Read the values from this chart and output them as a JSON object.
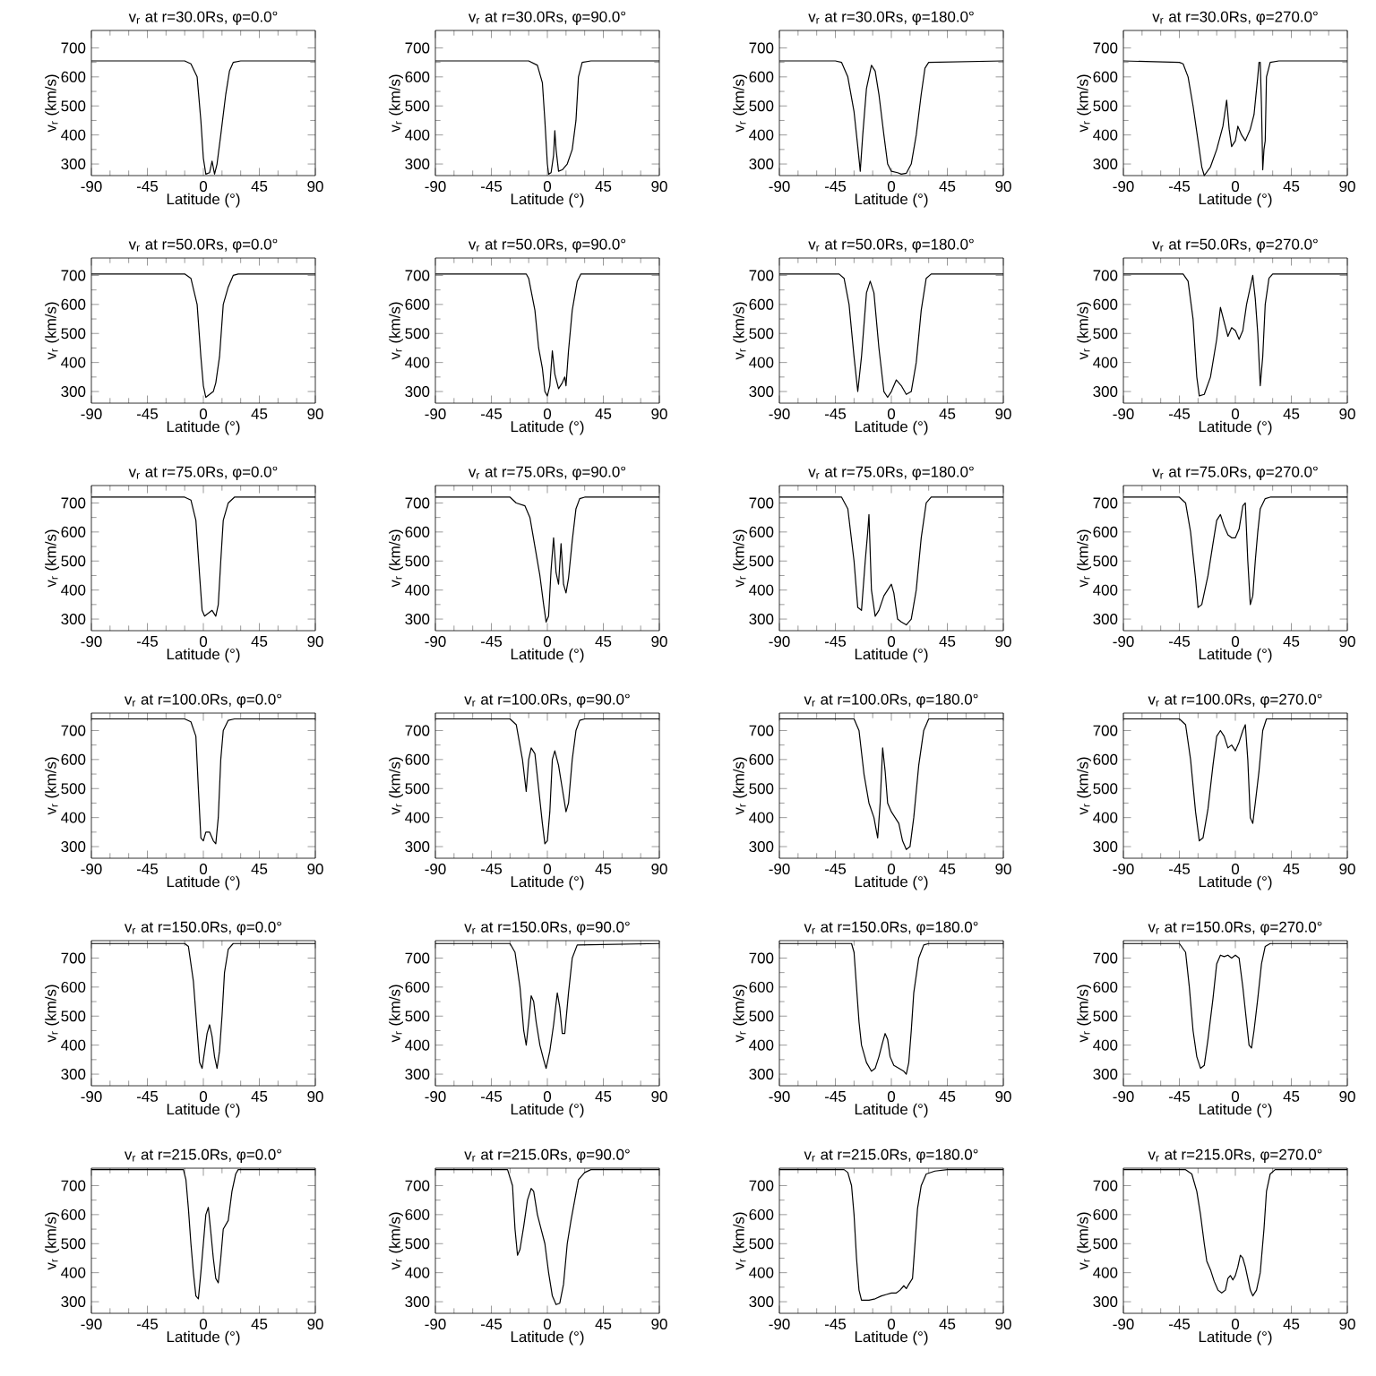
{
  "chart_data": [
    {
      "type": "line",
      "title": "v$_{r}$ at r=30.0Rs, φ=0.0°",
      "xlabel": "Latitude (°)",
      "ylabel": "v$_{r}$ (km/s)",
      "color": "#000000",
      "xlim": [
        -90,
        90
      ],
      "ylim": [
        260,
        760
      ],
      "xticks": [
        -90,
        -45,
        0,
        45,
        90
      ],
      "yticks": [
        300,
        400,
        500,
        600,
        700
      ],
      "x": [
        -90,
        -15,
        -10,
        -5,
        -2,
        0,
        2,
        5,
        7,
        9,
        11,
        14,
        18,
        21,
        24,
        30,
        90
      ],
      "values": [
        655,
        655,
        645,
        600,
        450,
        320,
        265,
        270,
        310,
        265,
        300,
        400,
        540,
        620,
        650,
        655,
        655
      ]
    },
    {
      "type": "line",
      "title": "v$_{r}$ at r=30.0Rs, φ=90.0°",
      "xlabel": "Latitude (°)",
      "ylabel": "v$_{r}$ (km/s)",
      "color": "#000000",
      "xlim": [
        -90,
        90
      ],
      "ylim": [
        260,
        760
      ],
      "xticks": [
        -90,
        -45,
        0,
        45,
        90
      ],
      "yticks": [
        300,
        400,
        500,
        600,
        700
      ],
      "x": [
        -90,
        -15,
        -8,
        -4,
        -2,
        0,
        1,
        3,
        5,
        6,
        7,
        9,
        12,
        16,
        20,
        23,
        25,
        28,
        35,
        90
      ],
      "values": [
        655,
        655,
        640,
        580,
        450,
        300,
        265,
        270,
        330,
        415,
        350,
        275,
        280,
        300,
        350,
        450,
        600,
        650,
        655,
        655
      ]
    },
    {
      "type": "line",
      "title": "v$_{r}$ at r=30.0Rs, φ=180.0°",
      "xlabel": "Latitude (°)",
      "ylabel": "v$_{r}$ (km/s)",
      "color": "#000000",
      "xlim": [
        -90,
        90
      ],
      "ylim": [
        260,
        760
      ],
      "xticks": [
        -90,
        -45,
        0,
        45,
        90
      ],
      "yticks": [
        300,
        400,
        500,
        600,
        700
      ],
      "x": [
        -90,
        -45,
        -40,
        -35,
        -30,
        -27,
        -25,
        -23,
        -20,
        -16,
        -13,
        -10,
        -6,
        -3,
        0,
        5,
        8,
        12,
        16,
        20,
        24,
        27,
        30,
        90
      ],
      "values": [
        655,
        655,
        650,
        600,
        480,
        360,
        275,
        400,
        560,
        640,
        620,
        540,
        400,
        300,
        275,
        270,
        265,
        268,
        300,
        400,
        540,
        630,
        650,
        655
      ]
    },
    {
      "type": "line",
      "title": "v$_{r}$ at r=30.0Rs, φ=270.0°",
      "xlabel": "Latitude (°)",
      "ylabel": "v$_{r}$ (km/s)",
      "color": "#000000",
      "xlim": [
        -90,
        90
      ],
      "ylim": [
        260,
        760
      ],
      "xticks": [
        -90,
        -45,
        0,
        45,
        90
      ],
      "yticks": [
        300,
        400,
        500,
        600,
        700
      ],
      "x": [
        -90,
        -45,
        -42,
        -38,
        -34,
        -30,
        -27,
        -25,
        -20,
        -15,
        -10,
        -7,
        -5,
        -3,
        0,
        2,
        5,
        8,
        12,
        15,
        18,
        19,
        20,
        21,
        22,
        23,
        24,
        25,
        28,
        35,
        90
      ],
      "values": [
        655,
        650,
        645,
        600,
        500,
        380,
        290,
        260,
        290,
        350,
        430,
        520,
        420,
        360,
        380,
        430,
        400,
        380,
        420,
        470,
        600,
        650,
        650,
        500,
        280,
        350,
        380,
        600,
        650,
        655,
        655
      ]
    },
    {
      "type": "line",
      "title": "v$_{r}$ at r=50.0Rs, φ=0.0°",
      "xlabel": "Latitude (°)",
      "ylabel": "v$_{r}$ (km/s)",
      "color": "#000000",
      "xlim": [
        -90,
        90
      ],
      "ylim": [
        260,
        760
      ],
      "xticks": [
        -90,
        -45,
        0,
        45,
        90
      ],
      "yticks": [
        300,
        400,
        500,
        600,
        700
      ],
      "x": [
        -90,
        -15,
        -10,
        -5,
        -2,
        0,
        2,
        5,
        8,
        10,
        13,
        16,
        20,
        24,
        28,
        90
      ],
      "values": [
        705,
        705,
        690,
        600,
        420,
        320,
        280,
        290,
        300,
        330,
        420,
        600,
        660,
        700,
        705,
        705
      ]
    },
    {
      "type": "line",
      "title": "v$_{r}$ at r=50.0Rs, φ=90.0°",
      "xlabel": "Latitude (°)",
      "ylabel": "v$_{r}$ (km/s)",
      "color": "#000000",
      "xlim": [
        -90,
        90
      ],
      "ylim": [
        260,
        760
      ],
      "xticks": [
        -90,
        -45,
        0,
        45,
        90
      ],
      "yticks": [
        300,
        400,
        500,
        600,
        700
      ],
      "x": [
        -90,
        -17,
        -15,
        -10,
        -7,
        -4,
        -2,
        0,
        2,
        4,
        6,
        9,
        12,
        14,
        15,
        17,
        20,
        24,
        27,
        90
      ],
      "values": [
        705,
        705,
        690,
        580,
        450,
        380,
        300,
        285,
        320,
        440,
        360,
        310,
        330,
        350,
        320,
        440,
        580,
        680,
        705,
        705
      ]
    },
    {
      "type": "line",
      "title": "v$_{r}$ at r=50.0Rs, φ=180.0°",
      "xlabel": "Latitude (°)",
      "ylabel": "v$_{r}$ (km/s)",
      "color": "#000000",
      "xlim": [
        -90,
        90
      ],
      "ylim": [
        260,
        760
      ],
      "xticks": [
        -90,
        -45,
        0,
        45,
        90
      ],
      "yticks": [
        300,
        400,
        500,
        600,
        700
      ],
      "x": [
        -90,
        -42,
        -38,
        -34,
        -30,
        -27,
        -24,
        -20,
        -17,
        -14,
        -10,
        -6,
        -3,
        0,
        4,
        8,
        12,
        16,
        20,
        24,
        28,
        32,
        90
      ],
      "values": [
        705,
        705,
        690,
        600,
        420,
        300,
        420,
        640,
        680,
        640,
        450,
        300,
        280,
        300,
        340,
        320,
        290,
        300,
        400,
        580,
        690,
        705,
        705
      ]
    },
    {
      "type": "line",
      "title": "v$_{r}$ at r=50.0Rs, φ=270.0°",
      "xlabel": "Latitude (°)",
      "ylabel": "v$_{r}$ (km/s)",
      "color": "#000000",
      "xlim": [
        -90,
        90
      ],
      "ylim": [
        260,
        760
      ],
      "xticks": [
        -90,
        -45,
        0,
        45,
        90
      ],
      "yticks": [
        300,
        400,
        500,
        600,
        700
      ],
      "x": [
        -90,
        -42,
        -38,
        -34,
        -31,
        -29,
        -25,
        -20,
        -15,
        -12,
        -9,
        -6,
        -3,
        0,
        3,
        6,
        9,
        12,
        14,
        16,
        18,
        20,
        22,
        24,
        27,
        30,
        90
      ],
      "values": [
        705,
        705,
        680,
        550,
        350,
        285,
        290,
        350,
        480,
        590,
        540,
        490,
        520,
        510,
        480,
        510,
        600,
        660,
        700,
        620,
        500,
        320,
        420,
        600,
        690,
        705,
        705
      ]
    },
    {
      "type": "line",
      "title": "v$_{r}$ at r=75.0Rs, φ=0.0°",
      "xlabel": "Latitude (°)",
      "ylabel": "v$_{r}$ (km/s)",
      "color": "#000000",
      "xlim": [
        -90,
        90
      ],
      "ylim": [
        260,
        760
      ],
      "xticks": [
        -90,
        -45,
        0,
        45,
        90
      ],
      "yticks": [
        300,
        400,
        500,
        600,
        700
      ],
      "x": [
        -90,
        -15,
        -10,
        -6,
        -3,
        -1,
        1,
        4,
        7,
        10,
        12,
        14,
        16,
        20,
        25,
        90
      ],
      "values": [
        720,
        720,
        710,
        640,
        450,
        330,
        310,
        320,
        330,
        310,
        350,
        500,
        640,
        700,
        720,
        720
      ]
    },
    {
      "type": "line",
      "title": "v$_{r}$ at r=75.0Rs, φ=90.0°",
      "xlabel": "Latitude (°)",
      "ylabel": "v$_{r}$ (km/s)",
      "color": "#000000",
      "xlim": [
        -90,
        90
      ],
      "ylim": [
        260,
        760
      ],
      "xticks": [
        -90,
        -45,
        0,
        45,
        90
      ],
      "yticks": [
        300,
        400,
        500,
        600,
        700
      ],
      "x": [
        -90,
        -30,
        -25,
        -18,
        -14,
        -10,
        -6,
        -3,
        -1,
        1,
        3,
        5,
        7,
        9,
        11,
        13,
        15,
        17,
        20,
        23,
        26,
        30,
        90
      ],
      "values": [
        720,
        720,
        700,
        690,
        650,
        550,
        450,
        350,
        290,
        310,
        470,
        580,
        460,
        420,
        560,
        420,
        390,
        440,
        570,
        680,
        715,
        720,
        720
      ]
    },
    {
      "type": "line",
      "title": "v$_{r}$ at r=75.0Rs, φ=180.0°",
      "xlabel": "Latitude (°)",
      "ylabel": "v$_{r}$ (km/s)",
      "color": "#000000",
      "xlim": [
        -90,
        90
      ],
      "ylim": [
        260,
        760
      ],
      "xticks": [
        -90,
        -45,
        0,
        45,
        90
      ],
      "yticks": [
        300,
        400,
        500,
        600,
        700
      ],
      "x": [
        -90,
        -40,
        -35,
        -30,
        -27,
        -24,
        -21,
        -19,
        -18,
        -16,
        -13,
        -10,
        -6,
        -3,
        0,
        2,
        5,
        8,
        12,
        16,
        20,
        24,
        28,
        32,
        90
      ],
      "values": [
        720,
        720,
        680,
        500,
        340,
        330,
        500,
        600,
        660,
        400,
        310,
        330,
        380,
        400,
        420,
        390,
        300,
        290,
        280,
        300,
        400,
        580,
        700,
        720,
        720
      ]
    },
    {
      "type": "line",
      "title": "v$_{r}$ at r=75.0Rs, φ=270.0°",
      "xlabel": "Latitude (°)",
      "ylabel": "v$_{r}$ (km/s)",
      "color": "#000000",
      "xlim": [
        -90,
        90
      ],
      "ylim": [
        260,
        760
      ],
      "xticks": [
        -90,
        -45,
        0,
        45,
        90
      ],
      "yticks": [
        300,
        400,
        500,
        600,
        700
      ],
      "x": [
        -90,
        -45,
        -40,
        -36,
        -32,
        -30,
        -27,
        -22,
        -18,
        -15,
        -12,
        -9,
        -6,
        -3,
        0,
        3,
        6,
        8,
        10,
        12,
        14,
        16,
        18,
        20,
        24,
        28,
        90
      ],
      "values": [
        720,
        720,
        700,
        600,
        440,
        340,
        350,
        450,
        560,
        640,
        660,
        620,
        590,
        580,
        580,
        610,
        690,
        700,
        500,
        350,
        380,
        500,
        600,
        680,
        715,
        720,
        720
      ]
    },
    {
      "type": "line",
      "title": "v$_{r}$ at r=100.0Rs, φ=0.0°",
      "xlabel": "Latitude (°)",
      "ylabel": "v$_{r}$ (km/s)",
      "color": "#000000",
      "xlim": [
        -90,
        90
      ],
      "ylim": [
        260,
        760
      ],
      "xticks": [
        -90,
        -45,
        0,
        45,
        90
      ],
      "yticks": [
        300,
        400,
        500,
        600,
        700
      ],
      "x": [
        -90,
        -15,
        -10,
        -6,
        -4,
        -2,
        0,
        2,
        5,
        8,
        10,
        12,
        14,
        16,
        20,
        25,
        90
      ],
      "values": [
        740,
        740,
        730,
        680,
        500,
        330,
        320,
        350,
        350,
        320,
        310,
        400,
        600,
        700,
        735,
        740,
        740
      ]
    },
    {
      "type": "line",
      "title": "v$_{r}$ at r=100.0Rs, φ=90.0°",
      "xlabel": "Latitude (°)",
      "ylabel": "v$_{r}$ (km/s)",
      "color": "#000000",
      "xlim": [
        -90,
        90
      ],
      "ylim": [
        260,
        760
      ],
      "xticks": [
        -90,
        -45,
        0,
        45,
        90
      ],
      "yticks": [
        300,
        400,
        500,
        600,
        700
      ],
      "x": [
        -90,
        -30,
        -25,
        -20,
        -17,
        -15,
        -13,
        -10,
        -7,
        -4,
        -2,
        0,
        2,
        4,
        6,
        9,
        12,
        15,
        17,
        20,
        23,
        26,
        30,
        90
      ],
      "values": [
        740,
        740,
        720,
        600,
        490,
        600,
        640,
        620,
        500,
        380,
        310,
        320,
        420,
        600,
        630,
        580,
        500,
        420,
        450,
        600,
        700,
        735,
        740,
        740
      ]
    },
    {
      "type": "line",
      "title": "v$_{r}$ at r=100.0Rs, φ=180.0°",
      "xlabel": "Latitude (°)",
      "ylabel": "v$_{r}$ (km/s)",
      "color": "#000000",
      "xlim": [
        -90,
        90
      ],
      "ylim": [
        260,
        760
      ],
      "xticks": [
        -90,
        -45,
        0,
        45,
        90
      ],
      "yticks": [
        300,
        400,
        500,
        600,
        700
      ],
      "x": [
        -90,
        -30,
        -26,
        -22,
        -18,
        -14,
        -11,
        -9,
        -7,
        -5,
        -3,
        0,
        3,
        6,
        9,
        12,
        15,
        18,
        22,
        26,
        30,
        90
      ],
      "values": [
        740,
        740,
        700,
        550,
        450,
        400,
        330,
        450,
        640,
        560,
        450,
        420,
        400,
        380,
        320,
        290,
        300,
        400,
        580,
        700,
        740,
        740
      ]
    },
    {
      "type": "line",
      "title": "v$_{r}$ at r=100.0Rs, φ=270.0°",
      "xlabel": "Latitude (°)",
      "ylabel": "v$_{r}$ (km/s)",
      "color": "#000000",
      "xlim": [
        -90,
        90
      ],
      "ylim": [
        260,
        760
      ],
      "xticks": [
        -90,
        -45,
        0,
        45,
        90
      ],
      "yticks": [
        300,
        400,
        500,
        600,
        700
      ],
      "x": [
        -90,
        -45,
        -40,
        -36,
        -32,
        -29,
        -26,
        -22,
        -18,
        -15,
        -12,
        -9,
        -6,
        -3,
        0,
        3,
        6,
        8,
        10,
        12,
        14,
        16,
        19,
        22,
        25,
        90
      ],
      "values": [
        740,
        740,
        720,
        600,
        420,
        320,
        330,
        430,
        580,
        680,
        700,
        680,
        640,
        650,
        630,
        660,
        700,
        720,
        600,
        400,
        380,
        450,
        560,
        700,
        740,
        740
      ]
    },
    {
      "type": "line",
      "title": "v$_{r}$ at r=150.0Rs, φ=0.0°",
      "xlabel": "Latitude (°)",
      "ylabel": "v$_{r}$ (km/s)",
      "color": "#000000",
      "xlim": [
        -90,
        90
      ],
      "ylim": [
        260,
        760
      ],
      "xticks": [
        -90,
        -45,
        0,
        45,
        90
      ],
      "yticks": [
        300,
        400,
        500,
        600,
        700
      ],
      "x": [
        -90,
        -15,
        -12,
        -8,
        -5,
        -3,
        -1,
        1,
        3,
        5,
        7,
        9,
        11,
        13,
        15,
        17,
        20,
        24,
        90
      ],
      "values": [
        750,
        750,
        740,
        620,
        450,
        340,
        320,
        380,
        440,
        470,
        430,
        360,
        320,
        380,
        500,
        650,
        730,
        750,
        750
      ]
    },
    {
      "type": "line",
      "title": "v$_{r}$ at r=150.0Rs, φ=90.0°",
      "xlabel": "Latitude (°)",
      "ylabel": "v$_{r}$ (km/s)",
      "color": "#000000",
      "xlim": [
        -90,
        90
      ],
      "ylim": [
        260,
        760
      ],
      "xticks": [
        -90,
        -45,
        0,
        45,
        90
      ],
      "yticks": [
        300,
        400,
        500,
        600,
        700
      ],
      "x": [
        -90,
        -30,
        -26,
        -22,
        -19,
        -17,
        -15,
        -13,
        -11,
        -9,
        -6,
        -3,
        -1,
        2,
        5,
        8,
        10,
        12,
        14,
        17,
        20,
        24,
        90
      ],
      "values": [
        750,
        750,
        720,
        600,
        450,
        400,
        480,
        570,
        550,
        480,
        400,
        350,
        320,
        380,
        470,
        580,
        530,
        440,
        440,
        580,
        700,
        745,
        750
      ]
    },
    {
      "type": "line",
      "title": "v$_{r}$ at r=150.0Rs, φ=180.0°",
      "xlabel": "Latitude (°)",
      "ylabel": "v$_{r}$ (km/s)",
      "color": "#000000",
      "xlim": [
        -90,
        90
      ],
      "ylim": [
        260,
        760
      ],
      "xticks": [
        -90,
        -45,
        0,
        45,
        90
      ],
      "yticks": [
        300,
        400,
        500,
        600,
        700
      ],
      "x": [
        -90,
        -32,
        -30,
        -28,
        -26,
        -24,
        -20,
        -16,
        -13,
        -10,
        -7,
        -5,
        -3,
        -1,
        2,
        6,
        10,
        12,
        14,
        16,
        18,
        22,
        26,
        30,
        90
      ],
      "values": [
        750,
        750,
        720,
        600,
        480,
        400,
        340,
        310,
        320,
        360,
        410,
        440,
        420,
        360,
        330,
        320,
        310,
        300,
        340,
        450,
        580,
        700,
        745,
        750,
        750
      ]
    },
    {
      "type": "line",
      "title": "v$_{r}$ at r=150.0Rs, φ=270.0°",
      "xlabel": "Latitude (°)",
      "ylabel": "v$_{r}$ (km/s)",
      "color": "#000000",
      "xlim": [
        -90,
        90
      ],
      "ylim": [
        260,
        760
      ],
      "xticks": [
        -90,
        -45,
        0,
        45,
        90
      ],
      "yticks": [
        300,
        400,
        500,
        600,
        700
      ],
      "x": [
        -90,
        -45,
        -40,
        -37,
        -34,
        -31,
        -28,
        -25,
        -22,
        -18,
        -15,
        -12,
        -9,
        -6,
        -3,
        0,
        3,
        6,
        9,
        11,
        13,
        15,
        18,
        21,
        24,
        28,
        90
      ],
      "values": [
        750,
        750,
        720,
        600,
        450,
        360,
        320,
        330,
        420,
        560,
        680,
        710,
        705,
        710,
        700,
        710,
        700,
        600,
        480,
        400,
        390,
        450,
        560,
        680,
        740,
        750,
        750
      ]
    },
    {
      "type": "line",
      "title": "v$_{r}$ at r=215.0Rs, φ=0.0°",
      "xlabel": "Latitude (°)",
      "ylabel": "v$_{r}$ (km/s)",
      "color": "#000000",
      "xlim": [
        -90,
        90
      ],
      "ylim": [
        260,
        760
      ],
      "xticks": [
        -90,
        -45,
        0,
        45,
        90
      ],
      "yticks": [
        300,
        400,
        500,
        600,
        700
      ],
      "x": [
        -90,
        -16,
        -14,
        -12,
        -10,
        -8,
        -6,
        -4,
        -2,
        0,
        2,
        4,
        6,
        8,
        10,
        12,
        14,
        16,
        20,
        23,
        26,
        28,
        90
      ],
      "values": [
        755,
        755,
        720,
        620,
        500,
        400,
        320,
        310,
        400,
        500,
        600,
        625,
        540,
        450,
        380,
        365,
        450,
        550,
        580,
        680,
        740,
        755,
        755
      ]
    },
    {
      "type": "line",
      "title": "v$_{r}$ at r=215.0Rs, φ=90.0°",
      "xlabel": "Latitude (°)",
      "ylabel": "v$_{r}$ (km/s)",
      "color": "#000000",
      "xlim": [
        -90,
        90
      ],
      "ylim": [
        260,
        760
      ],
      "xticks": [
        -90,
        -45,
        0,
        45,
        90
      ],
      "yticks": [
        300,
        400,
        500,
        600,
        700
      ],
      "x": [
        -90,
        -32,
        -28,
        -26,
        -24,
        -22,
        -19,
        -16,
        -13,
        -11,
        -8,
        -5,
        -2,
        1,
        4,
        7,
        10,
        13,
        16,
        19,
        22,
        25,
        30,
        35,
        90
      ],
      "values": [
        755,
        755,
        700,
        550,
        460,
        480,
        560,
        650,
        690,
        680,
        600,
        550,
        500,
        400,
        320,
        290,
        295,
        360,
        500,
        580,
        650,
        720,
        745,
        755,
        755
      ]
    },
    {
      "type": "line",
      "title": "v$_{r}$ at r=215.0Rs, φ=180.0°",
      "xlabel": "Latitude (°)",
      "ylabel": "v$_{r}$ (km/s)",
      "color": "#000000",
      "xlim": [
        -90,
        90
      ],
      "ylim": [
        260,
        760
      ],
      "xticks": [
        -90,
        -45,
        0,
        45,
        90
      ],
      "yticks": [
        300,
        400,
        500,
        600,
        700
      ],
      "x": [
        -90,
        -38,
        -35,
        -32,
        -30,
        -28,
        -26,
        -24,
        -18,
        -13,
        -8,
        -4,
        0,
        4,
        7,
        10,
        12,
        14,
        17,
        19,
        21,
        24,
        28,
        35,
        45,
        90
      ],
      "values": [
        755,
        755,
        745,
        700,
        600,
        450,
        340,
        305,
        305,
        310,
        320,
        325,
        330,
        330,
        340,
        355,
        345,
        360,
        380,
        500,
        620,
        700,
        740,
        750,
        755,
        755
      ]
    },
    {
      "type": "line",
      "title": "v$_{r}$ at r=215.0Rs, φ=270.0°",
      "xlabel": "Latitude (°)",
      "ylabel": "v$_{r}$ (km/s)",
      "color": "#000000",
      "xlim": [
        -90,
        90
      ],
      "ylim": [
        260,
        760
      ],
      "xticks": [
        -90,
        -45,
        0,
        45,
        90
      ],
      "yticks": [
        300,
        400,
        500,
        600,
        700
      ],
      "x": [
        -90,
        -40,
        -35,
        -31,
        -28,
        -25,
        -23,
        -20,
        -17,
        -14,
        -11,
        -8,
        -6,
        -4,
        -2,
        0,
        2,
        4,
        6,
        8,
        10,
        12,
        14,
        17,
        20,
        23,
        25,
        28,
        32,
        90
      ],
      "values": [
        755,
        755,
        740,
        680,
        600,
        500,
        440,
        410,
        370,
        340,
        330,
        340,
        380,
        390,
        375,
        390,
        420,
        460,
        450,
        420,
        380,
        340,
        320,
        340,
        400,
        550,
        680,
        740,
        755,
        755
      ]
    }
  ]
}
